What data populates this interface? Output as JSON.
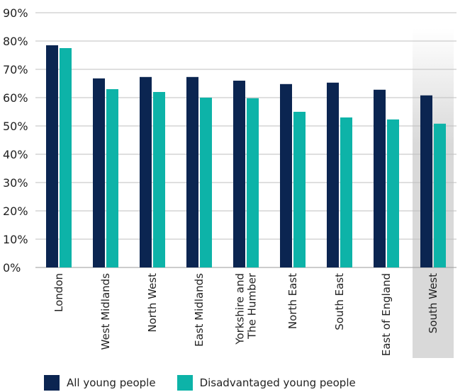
{
  "chart_data": {
    "type": "bar",
    "categories": [
      "London",
      "West Midlands",
      "North West",
      "East Midlands",
      "Yorkshire and The Humber",
      "North East",
      "South East",
      "East of England",
      "South West"
    ],
    "category_lines": [
      [
        "London"
      ],
      [
        "West Midlands"
      ],
      [
        "North West"
      ],
      [
        "East Midlands"
      ],
      [
        "Yorkshire and",
        "The Humber"
      ],
      [
        "North East"
      ],
      [
        "South East"
      ],
      [
        "East of England"
      ],
      [
        "South West"
      ]
    ],
    "series": [
      {
        "name": "All young people",
        "values": [
          78.5,
          66.8,
          67.3,
          67.3,
          66.0,
          64.8,
          65.3,
          62.8,
          60.8
        ],
        "color": "#0b2551"
      },
      {
        "name": "Disadvantaged young people",
        "values": [
          77.5,
          63.0,
          62.0,
          60.0,
          59.8,
          55.0,
          53.0,
          52.3,
          50.8
        ],
        "color": "#0db3a8"
      }
    ],
    "highlighted_category": "South West",
    "highlight_color": "#d9d9d9",
    "yticks": [
      "0%",
      "10%",
      "20%",
      "30%",
      "40%",
      "50%",
      "60%",
      "70%",
      "80%",
      "90%"
    ],
    "ylim": [
      0,
      90
    ],
    "grid": true,
    "grid_color": "#bfbfbf",
    "legend_position": "bottom-left",
    "title": "",
    "xlabel": "",
    "ylabel": ""
  }
}
